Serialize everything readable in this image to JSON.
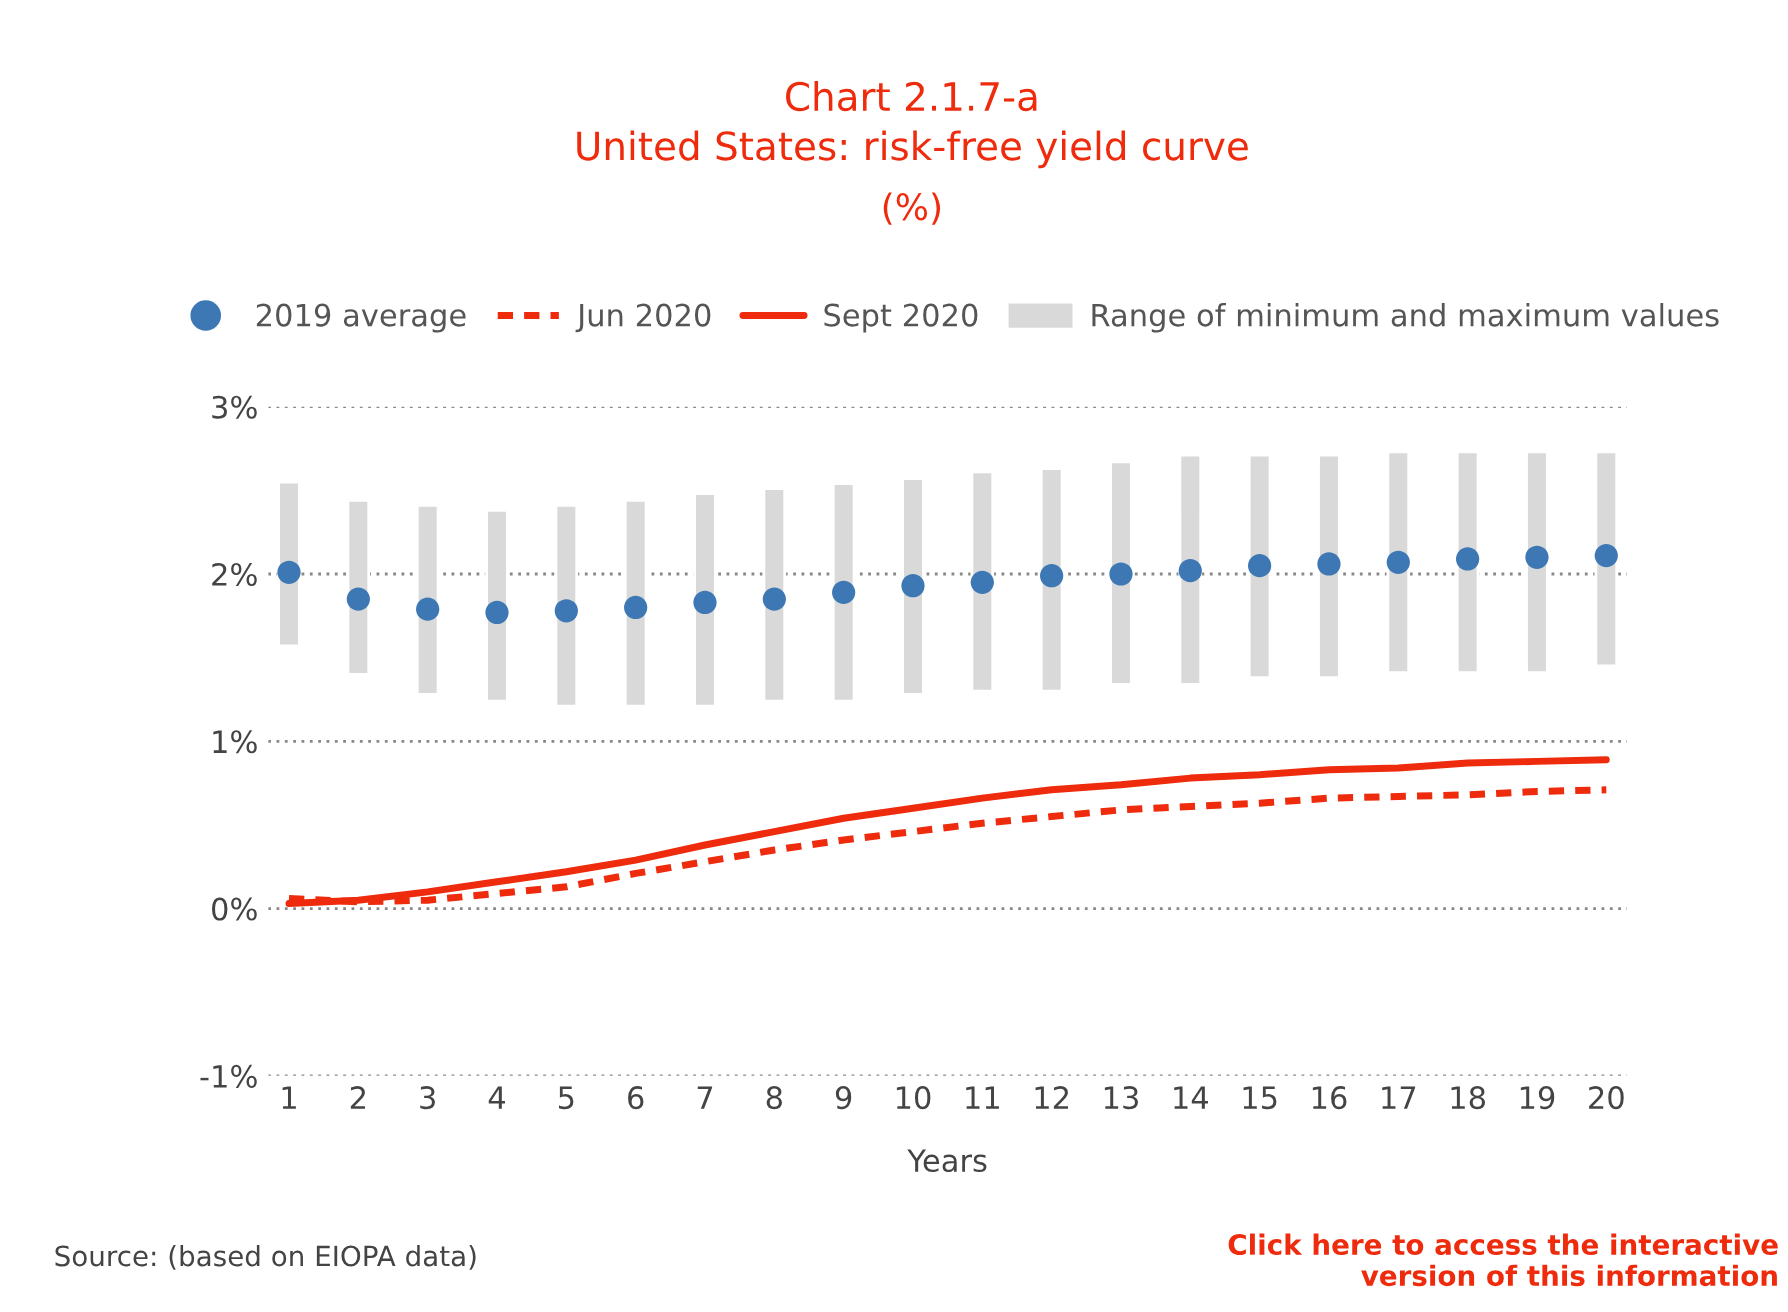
{
  "chart_data": {
    "type": "line",
    "title": "Chart 2.1.7-a\nUnited States: risk-free yield curve",
    "subtitle": "(%)",
    "xlabel": "Years",
    "categories": [
      "1",
      "2",
      "3",
      "4",
      "5",
      "6",
      "7",
      "8",
      "9",
      "10",
      "11",
      "12",
      "13",
      "14",
      "15",
      "16",
      "17",
      "18",
      "19",
      "20"
    ],
    "series": [
      {
        "name": "2019 average",
        "type": "scatter",
        "color": "#3d78b4",
        "values": [
          2.01,
          1.85,
          1.79,
          1.77,
          1.78,
          1.8,
          1.83,
          1.85,
          1.89,
          1.93,
          1.95,
          1.99,
          2.0,
          2.02,
          2.05,
          2.06,
          2.07,
          2.09,
          2.1,
          2.11
        ]
      },
      {
        "name": "Jun 2020",
        "line_style": "dashed",
        "color": "#ee2b0c",
        "values": [
          0.06,
          0.04,
          0.05,
          0.09,
          0.13,
          0.21,
          0.28,
          0.35,
          0.41,
          0.46,
          0.51,
          0.55,
          0.59,
          0.61,
          0.63,
          0.66,
          0.67,
          0.68,
          0.7,
          0.71
        ]
      },
      {
        "name": "Sept 2020",
        "line_style": "solid",
        "color": "#ee2b0c",
        "values": [
          0.03,
          0.05,
          0.1,
          0.16,
          0.22,
          0.29,
          0.38,
          0.46,
          0.54,
          0.6,
          0.66,
          0.71,
          0.74,
          0.78,
          0.8,
          0.83,
          0.84,
          0.87,
          0.88,
          0.89
        ]
      },
      {
        "name": "Range of minimum and maximum values",
        "type": "bar",
        "color": "#d9d9d9",
        "base": [
          1.57,
          1.4,
          1.28,
          1.24,
          1.21,
          1.21,
          1.21,
          1.24,
          1.24,
          1.28,
          1.3,
          1.3,
          1.34,
          1.34,
          1.38,
          1.38,
          1.41,
          1.41,
          1.41,
          1.45
        ],
        "values": [
          0.98,
          1.04,
          1.13,
          1.14,
          1.2,
          1.23,
          1.27,
          1.27,
          1.3,
          1.29,
          1.31,
          1.33,
          1.33,
          1.37,
          1.33,
          1.33,
          1.32,
          1.32,
          1.32,
          1.28
        ]
      }
    ],
    "ylim": [
      -1,
      3
    ],
    "yticks": [
      {
        "value": -1,
        "label": "-1%"
      },
      {
        "value": 0,
        "label": "0%"
      },
      {
        "value": 1,
        "label": "1%"
      },
      {
        "value": 2,
        "label": "2%"
      },
      {
        "value": 3,
        "label": "3%"
      }
    ],
    "grid": "y",
    "legend": "top",
    "annotations": [
      "Source: (based on EIOPA data)",
      "Click here to access the interactive\nversion of this information"
    ]
  }
}
